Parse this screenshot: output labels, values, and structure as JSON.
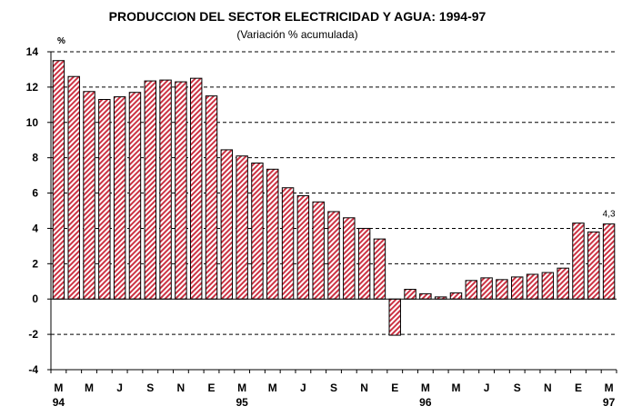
{
  "chart_data": {
    "type": "bar",
    "title": "PRODUCCION DEL SECTOR ELECTRICIDAD Y AGUA: 1994-97",
    "subtitle": "(Variación % acumulada)",
    "ylabel": "%",
    "ylim": [
      -4,
      14
    ],
    "yticks": [
      -4,
      -2,
      0,
      2,
      4,
      6,
      8,
      10,
      12,
      14
    ],
    "grid": "horizontal-dashed",
    "bar_color": "#cc3344",
    "x_month_labels": [
      "M",
      "M",
      "J",
      "S",
      "N",
      "E",
      "M",
      "M",
      "J",
      "S",
      "N",
      "E",
      "M",
      "M",
      "J",
      "S",
      "N",
      "E",
      "M"
    ],
    "x_year_labels": [
      "94",
      "95",
      "96",
      "97"
    ],
    "values": [
      13.5,
      12.6,
      11.75,
      11.3,
      11.45,
      11.7,
      12.35,
      12.4,
      12.3,
      12.5,
      11.5,
      8.45,
      8.1,
      7.7,
      7.35,
      6.3,
      5.85,
      5.5,
      4.95,
      4.6,
      4.0,
      3.4,
      -2.05,
      0.55,
      0.3,
      0.12,
      0.35,
      1.05,
      1.2,
      1.1,
      1.25,
      1.4,
      1.5,
      1.75,
      4.3,
      3.8,
      4.25
    ],
    "data_labels": [
      {
        "index": 36,
        "text": "4,3"
      }
    ]
  }
}
